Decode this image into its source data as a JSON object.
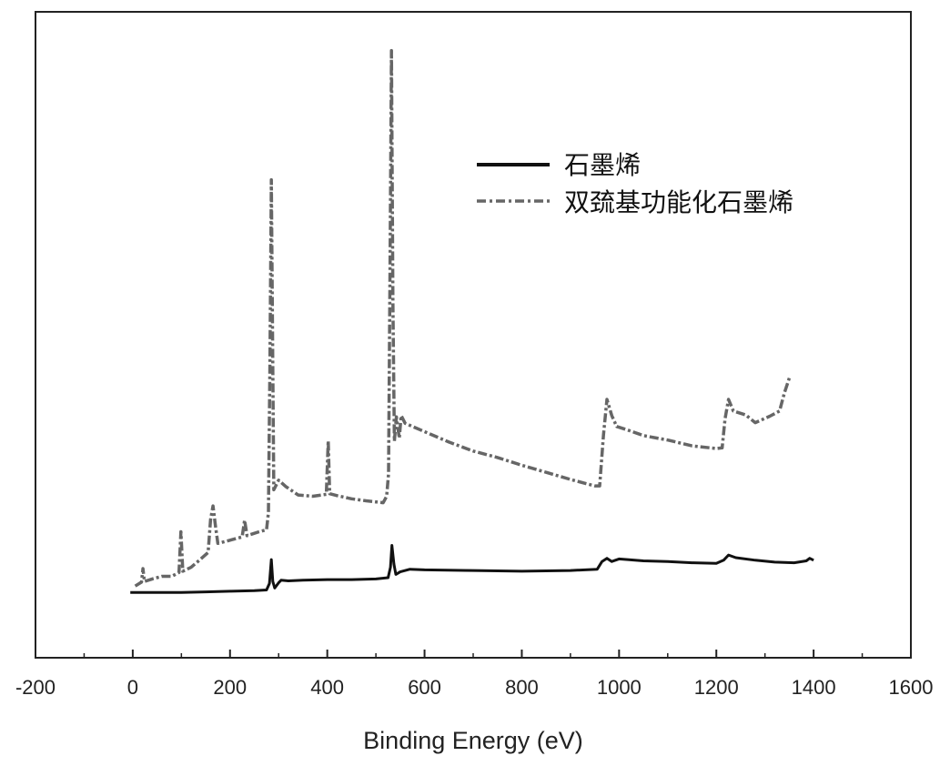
{
  "chart_data": {
    "type": "line",
    "title": "",
    "xlabel": "Binding Energy (eV)",
    "ylabel": "",
    "xlim": [
      -200,
      1600
    ],
    "ylim": [
      0,
      100
    ],
    "x_ticks": [
      -200,
      0,
      200,
      400,
      600,
      800,
      1000,
      1200,
      1400,
      1600
    ],
    "x_tick_labels": [
      "-200",
      "0",
      "200",
      "400",
      "600",
      "800",
      "1000",
      "1200",
      "1400",
      "1600"
    ],
    "grid": false,
    "legend": "top-right",
    "series": [
      {
        "name": "石墨烯",
        "style": "solid",
        "color": "#111111",
        "points": [
          [
            -5,
            10.1
          ],
          [
            50,
            10.1
          ],
          [
            100,
            10.1
          ],
          [
            150,
            10.2
          ],
          [
            200,
            10.3
          ],
          [
            250,
            10.4
          ],
          [
            275,
            10.5
          ],
          [
            281,
            11.5
          ],
          [
            285,
            15.2
          ],
          [
            288,
            11.8
          ],
          [
            292,
            10.8
          ],
          [
            300,
            11.6
          ],
          [
            305,
            12.0
          ],
          [
            320,
            11.9
          ],
          [
            350,
            12.0
          ],
          [
            400,
            12.1
          ],
          [
            450,
            12.1
          ],
          [
            500,
            12.2
          ],
          [
            525,
            12.4
          ],
          [
            530,
            14.0
          ],
          [
            533,
            17.4
          ],
          [
            537,
            14.5
          ],
          [
            541,
            12.9
          ],
          [
            550,
            13.3
          ],
          [
            570,
            13.7
          ],
          [
            600,
            13.6
          ],
          [
            700,
            13.5
          ],
          [
            800,
            13.4
          ],
          [
            900,
            13.5
          ],
          [
            955,
            13.7
          ],
          [
            965,
            14.9
          ],
          [
            975,
            15.4
          ],
          [
            985,
            14.9
          ],
          [
            1000,
            15.3
          ],
          [
            1050,
            15.0
          ],
          [
            1100,
            14.9
          ],
          [
            1150,
            14.7
          ],
          [
            1200,
            14.6
          ],
          [
            1215,
            15.1
          ],
          [
            1225,
            15.9
          ],
          [
            1240,
            15.5
          ],
          [
            1280,
            15.1
          ],
          [
            1320,
            14.8
          ],
          [
            1360,
            14.7
          ],
          [
            1385,
            15.0
          ],
          [
            1392,
            15.4
          ],
          [
            1400,
            15.1
          ]
        ]
      },
      {
        "name": "双巯基功能化石墨烯",
        "style": "dash-dot",
        "color": "#666666",
        "points": [
          [
            5,
            11.1
          ],
          [
            18,
            11.7
          ],
          [
            21,
            13.8
          ],
          [
            24,
            11.8
          ],
          [
            40,
            12.2
          ],
          [
            60,
            12.6
          ],
          [
            80,
            12.6
          ],
          [
            95,
            13.2
          ],
          [
            99,
            19.5
          ],
          [
            103,
            13.4
          ],
          [
            120,
            14.0
          ],
          [
            140,
            15.3
          ],
          [
            155,
            16.3
          ],
          [
            160,
            21.4
          ],
          [
            165,
            23.5
          ],
          [
            170,
            20.5
          ],
          [
            175,
            17.7
          ],
          [
            200,
            18.2
          ],
          [
            225,
            18.7
          ],
          [
            230,
            21.3
          ],
          [
            235,
            18.9
          ],
          [
            260,
            19.5
          ],
          [
            275,
            19.8
          ],
          [
            279,
            22.5
          ],
          [
            282,
            45.0
          ],
          [
            285,
            74.0
          ],
          [
            288,
            45.0
          ],
          [
            290,
            26.0
          ],
          [
            300,
            27.5
          ],
          [
            315,
            26.5
          ],
          [
            340,
            25.2
          ],
          [
            370,
            25.0
          ],
          [
            398,
            25.3
          ],
          [
            402,
            33.6
          ],
          [
            405,
            25.4
          ],
          [
            420,
            25.1
          ],
          [
            450,
            24.6
          ],
          [
            480,
            24.3
          ],
          [
            515,
            24.0
          ],
          [
            522,
            25.0
          ],
          [
            526,
            28.5
          ],
          [
            529,
            60.0
          ],
          [
            532,
            94.0
          ],
          [
            535,
            55.0
          ],
          [
            538,
            33.5
          ],
          [
            542,
            37.3
          ],
          [
            548,
            34.0
          ],
          [
            552,
            37.5
          ],
          [
            560,
            36.3
          ],
          [
            600,
            35.0
          ],
          [
            650,
            33.4
          ],
          [
            700,
            32.0
          ],
          [
            750,
            31.0
          ],
          [
            800,
            29.8
          ],
          [
            850,
            28.7
          ],
          [
            900,
            27.6
          ],
          [
            950,
            26.6
          ],
          [
            960,
            26.6
          ],
          [
            968,
            34.5
          ],
          [
            975,
            40.0
          ],
          [
            985,
            37.5
          ],
          [
            995,
            35.8
          ],
          [
            1020,
            35.2
          ],
          [
            1050,
            34.4
          ],
          [
            1100,
            33.7
          ],
          [
            1150,
            32.8
          ],
          [
            1200,
            32.4
          ],
          [
            1212,
            32.5
          ],
          [
            1218,
            37.0
          ],
          [
            1225,
            40.0
          ],
          [
            1235,
            38.2
          ],
          [
            1260,
            37.6
          ],
          [
            1280,
            36.4
          ],
          [
            1310,
            37.4
          ],
          [
            1330,
            38.2
          ],
          [
            1340,
            41.0
          ],
          [
            1350,
            43.3
          ]
        ]
      }
    ]
  }
}
